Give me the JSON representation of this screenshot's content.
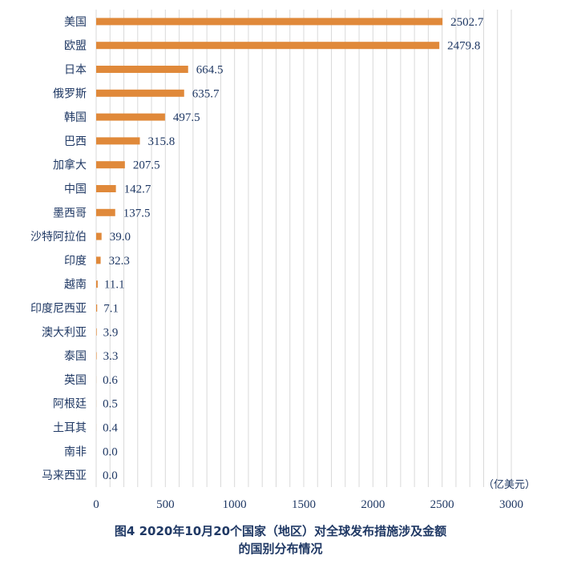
{
  "chart_data": {
    "type": "bar",
    "orientation": "horizontal",
    "categories": [
      "美国",
      "欧盟",
      "日本",
      "俄罗斯",
      "韩国",
      "巴西",
      "加拿大",
      "中国",
      "墨西哥",
      "沙特阿拉伯",
      "印度",
      "越南",
      "印度尼西亚",
      "澳大利亚",
      "泰国",
      "英国",
      "阿根廷",
      "土耳其",
      "南非",
      "马来西亚"
    ],
    "values": [
      2502.7,
      2479.8,
      664.5,
      635.7,
      497.5,
      315.8,
      207.5,
      142.7,
      137.5,
      39.0,
      32.3,
      11.1,
      7.1,
      3.9,
      3.3,
      0.6,
      0.5,
      0.4,
      0.0,
      0.0
    ],
    "value_labels": [
      "2502.7",
      "2479.8",
      "664.5",
      "635.7",
      "497.5",
      "315.8",
      "207.5",
      "142.7",
      "137.5",
      "39.0",
      "32.3",
      "11.1",
      "7.1",
      "3.9",
      "3.3",
      "0.6",
      "0.5",
      "0.4",
      "0.0",
      "0.0"
    ],
    "xlim": [
      0,
      3000
    ],
    "xticks": [
      0,
      500,
      1000,
      1500,
      2000,
      2500,
      3000
    ],
    "xtick_labels": [
      "0",
      "500",
      "1000",
      "1500",
      "2000",
      "2500",
      "3000"
    ],
    "unit": "（亿美元）",
    "grid": "vertical",
    "bar_color": "#e0893a",
    "grid_color": "#d9d9d9",
    "text_color": "#1f3864"
  },
  "caption": {
    "line1": "图4  2020年10月20个国家（地区）对全球发布措施涉及金额",
    "line2": "的国别分布情况"
  }
}
